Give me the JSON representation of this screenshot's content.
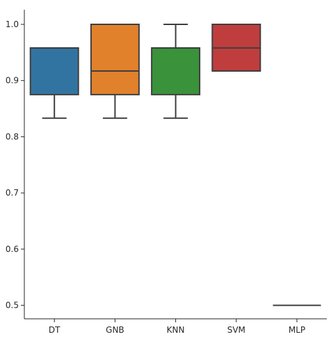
{
  "chart_data": {
    "type": "boxplot",
    "title": "",
    "xlabel": "",
    "ylabel": "",
    "categories": [
      "DT",
      "GNB",
      "KNN",
      "SVM",
      "MLP"
    ],
    "ylim": [
      0.476,
      1.026
    ],
    "yticks": [
      {
        "value": 0.5,
        "label": "0.5"
      },
      {
        "value": 0.6,
        "label": "0.6"
      },
      {
        "value": 0.7,
        "label": "0.7"
      },
      {
        "value": 0.8,
        "label": "0.8"
      },
      {
        "value": 0.9,
        "label": "0.9"
      },
      {
        "value": 1.0,
        "label": "1.0"
      }
    ],
    "grid": false,
    "legend": "none",
    "boxes": [
      {
        "category": "DT",
        "whisker_low": 0.833,
        "q1": 0.875,
        "median": 0.958,
        "q3": 0.958,
        "whisker_high": 0.958,
        "color": "#3274a1"
      },
      {
        "category": "GNB",
        "whisker_low": 0.833,
        "q1": 0.875,
        "median": 0.917,
        "q3": 1.0,
        "whisker_high": 1.0,
        "color": "#e1812c"
      },
      {
        "category": "KNN",
        "whisker_low": 0.833,
        "q1": 0.875,
        "median": 0.958,
        "q3": 0.958,
        "whisker_high": 1.0,
        "color": "#3a923a"
      },
      {
        "category": "SVM",
        "whisker_low": 0.917,
        "q1": 0.917,
        "median": 0.958,
        "q3": 1.0,
        "whisker_high": 1.0,
        "color": "#c03d3e"
      },
      {
        "category": "MLP",
        "whisker_low": 0.5,
        "q1": 0.5,
        "median": 0.5,
        "q3": 0.5,
        "whisker_high": 0.5,
        "color": "#9372b2"
      }
    ],
    "line_color": "#3f3f3f",
    "axis_color": "#262626"
  }
}
